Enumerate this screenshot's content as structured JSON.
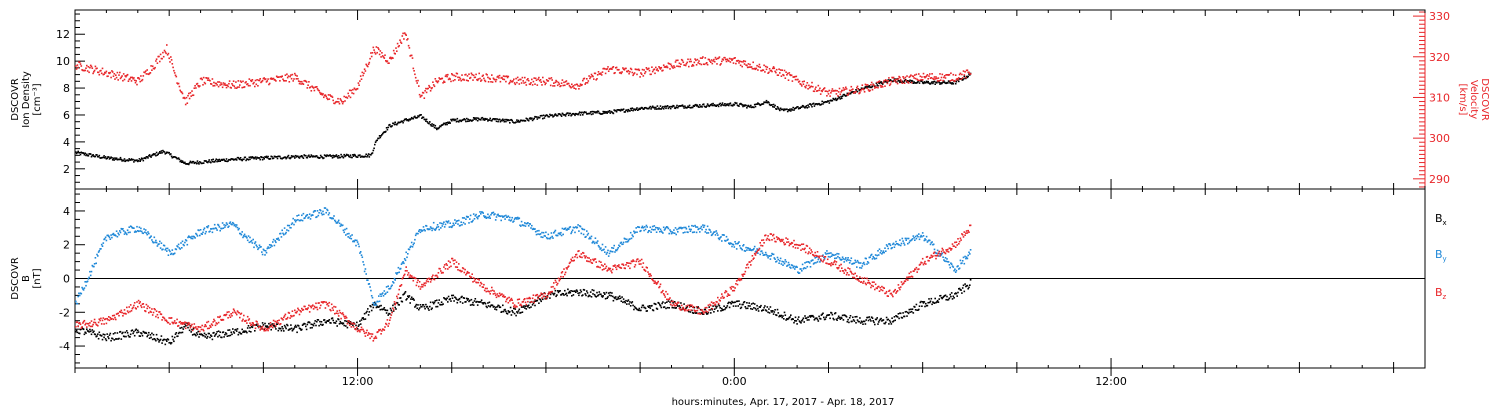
{
  "xlabel": "hours:minutes, Apr. 17, 2017 - Apr. 18, 2017",
  "x_ticks": [
    "12:00",
    "0:00",
    "12:00"
  ],
  "colors": {
    "black": "#000000",
    "red": "#e8262a",
    "blue": "#1f88d8"
  },
  "chart_data": [
    {
      "type": "scatter",
      "xlim": [
        3.0,
        46.0
      ],
      "x_unit": "hours since Apr. 17, 2017 00:00",
      "left_axis": {
        "label_lines": [
          "DSCOVR",
          "Ion Density",
          "[cm⁻³]"
        ],
        "ylim": [
          0.5,
          13.8
        ],
        "ticks": [
          2,
          4,
          6,
          8,
          10,
          12
        ],
        "color": "#000000"
      },
      "right_axis": {
        "label_lines": [
          "DSCOVR",
          "Velocity",
          "[km/s]"
        ],
        "ylim": [
          287.5,
          331.5
        ],
        "ticks": [
          290,
          300,
          310,
          320,
          330
        ],
        "color": "#e8262a"
      },
      "series": [
        {
          "axis": "left",
          "color": "#000000",
          "x": [
            3.0,
            4.0,
            5.0,
            5.8,
            6.5,
            7.0,
            8.0,
            9.0,
            10.0,
            11.0,
            12.4,
            12.6,
            13.0,
            13.5,
            14.0,
            14.5,
            15.0,
            16.0,
            17.0,
            18.0,
            19.0,
            20.0,
            21.0,
            22.0,
            23.0,
            24.0,
            24.5,
            25.0,
            25.5,
            26.0,
            27.0,
            28.0,
            29.0,
            30.0,
            31.0,
            31.5
          ],
          "y": [
            3.2,
            2.8,
            2.6,
            3.3,
            2.4,
            2.5,
            2.7,
            2.8,
            2.9,
            2.9,
            3.0,
            4.2,
            5.2,
            5.6,
            5.9,
            5.0,
            5.6,
            5.7,
            5.5,
            5.9,
            6.1,
            6.2,
            6.5,
            6.6,
            6.7,
            6.8,
            6.6,
            7.0,
            6.3,
            6.5,
            7.0,
            7.9,
            8.6,
            8.4,
            8.4,
            9.0
          ]
        },
        {
          "axis": "right",
          "color": "#e8262a",
          "x": [
            3.0,
            3.5,
            4.0,
            5.0,
            5.5,
            5.9,
            6.2,
            6.5,
            7.0,
            8.0,
            9.0,
            10.0,
            11.0,
            11.5,
            12.0,
            12.5,
            13.0,
            13.5,
            14.0,
            14.5,
            15.0,
            16.0,
            17.0,
            18.0,
            19.0,
            20.0,
            21.0,
            22.0,
            23.0,
            24.0,
            25.0,
            25.5,
            26.0,
            27.0,
            28.0,
            29.0,
            30.0,
            31.0,
            31.5
          ],
          "y": [
            318,
            317,
            316,
            314,
            318,
            322,
            315,
            309,
            314,
            313,
            314,
            315,
            310,
            309,
            313,
            322,
            319,
            326,
            310,
            314,
            315,
            315,
            314,
            314,
            313,
            317,
            316,
            318,
            319,
            319,
            317,
            316,
            314,
            311,
            312,
            314,
            315,
            315,
            316
          ]
        }
      ]
    },
    {
      "type": "scatter",
      "xlim": [
        3.0,
        46.0
      ],
      "x_unit": "hours since Apr. 17, 2017 00:00",
      "left_axis": {
        "label_lines": [
          "DSCOVR",
          "B",
          "[nT]"
        ],
        "ylim": [
          -5.3,
          5.3
        ],
        "ticks": [
          -4,
          -2,
          0,
          2,
          4
        ],
        "color": "#000000"
      },
      "zero_line": true,
      "series": [
        {
          "name": "Bx",
          "color": "#000000",
          "x": [
            3.0,
            4.0,
            5.0,
            6.0,
            6.5,
            7.0,
            8.0,
            9.0,
            10.0,
            11.0,
            12.0,
            12.5,
            13.0,
            13.5,
            14.0,
            15.0,
            16.0,
            17.0,
            18.0,
            19.0,
            20.0,
            21.0,
            22.0,
            23.0,
            24.0,
            25.0,
            26.0,
            27.0,
            28.0,
            29.0,
            30.0,
            31.0,
            31.5
          ],
          "y": [
            -3.0,
            -3.5,
            -3.2,
            -3.8,
            -2.8,
            -3.5,
            -3.2,
            -2.8,
            -3.0,
            -2.5,
            -2.8,
            -1.5,
            -2.0,
            -1.0,
            -1.8,
            -1.2,
            -1.5,
            -2.0,
            -1.0,
            -0.8,
            -1.0,
            -1.8,
            -1.5,
            -2.0,
            -1.5,
            -1.8,
            -2.5,
            -2.2,
            -2.5,
            -2.5,
            -1.5,
            -1.0,
            -0.3
          ]
        },
        {
          "name": "By",
          "color": "#1f88d8",
          "x": [
            3.0,
            3.5,
            4.0,
            5.0,
            6.0,
            7.0,
            8.0,
            9.0,
            10.0,
            11.0,
            11.5,
            12.0,
            12.5,
            13.0,
            14.0,
            15.0,
            16.0,
            17.0,
            18.0,
            19.0,
            20.0,
            21.0,
            22.0,
            23.0,
            24.0,
            25.0,
            26.0,
            27.0,
            28.0,
            29.0,
            30.0,
            31.0,
            31.5
          ],
          "y": [
            -1.5,
            0.5,
            2.5,
            3.0,
            1.5,
            2.8,
            3.2,
            1.5,
            3.5,
            4.0,
            3.0,
            2.0,
            -1.5,
            -0.5,
            3.0,
            3.2,
            3.8,
            3.5,
            2.5,
            3.0,
            1.5,
            3.0,
            2.8,
            3.0,
            2.0,
            1.5,
            0.5,
            1.5,
            0.8,
            2.0,
            2.5,
            0.5,
            1.5
          ]
        },
        {
          "name": "Bz",
          "color": "#e8262a",
          "x": [
            3.0,
            4.0,
            5.0,
            6.0,
            7.0,
            8.0,
            9.0,
            10.0,
            11.0,
            12.0,
            12.5,
            13.0,
            13.5,
            14.0,
            15.0,
            16.0,
            17.0,
            18.0,
            19.0,
            20.0,
            21.0,
            22.0,
            23.0,
            24.0,
            25.0,
            26.0,
            27.0,
            28.0,
            29.0,
            30.0,
            31.0,
            31.5
          ],
          "y": [
            -2.8,
            -2.5,
            -1.5,
            -2.5,
            -3.0,
            -2.0,
            -3.0,
            -2.0,
            -1.5,
            -3.0,
            -3.5,
            -2.5,
            0.5,
            -0.5,
            1.0,
            -0.5,
            -1.5,
            -1.0,
            1.5,
            0.5,
            1.0,
            -1.5,
            -2.0,
            -0.5,
            2.5,
            2.0,
            1.0,
            0.0,
            -1.0,
            1.0,
            2.0,
            3.0
          ]
        }
      ]
    }
  ]
}
